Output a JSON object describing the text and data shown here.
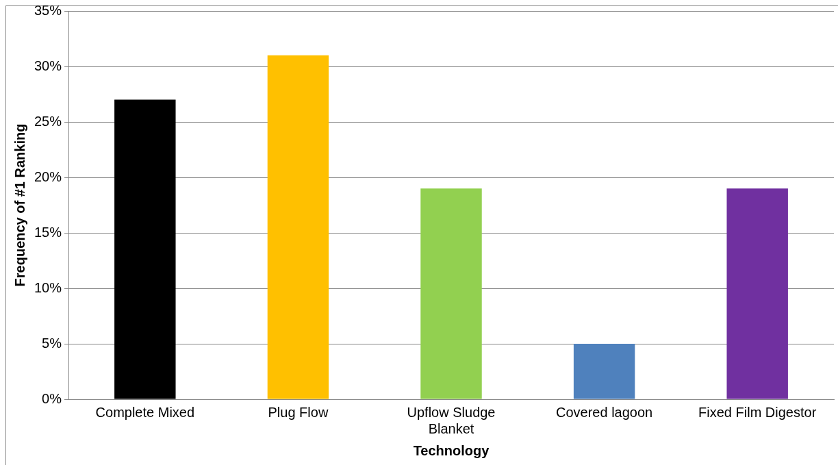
{
  "chart_data": {
    "type": "bar",
    "categories": [
      "Complete Mixed",
      "Plug Flow",
      "Upflow Sludge Blanket",
      "Covered lagoon",
      "Fixed Film Digestor"
    ],
    "values": [
      27,
      31,
      19,
      5,
      19
    ],
    "colors": [
      "#000000",
      "#ffc000",
      "#92d050",
      "#4f81bd",
      "#7030a0"
    ],
    "xlabel": "Technology",
    "ylabel": "Frequency of #1 Ranking",
    "ylim": [
      0,
      35
    ],
    "yticks": [
      {
        "value": 0,
        "label": "0%"
      },
      {
        "value": 5,
        "label": "5%"
      },
      {
        "value": 10,
        "label": "10%"
      },
      {
        "value": 15,
        "label": "15%"
      },
      {
        "value": 20,
        "label": "20%"
      },
      {
        "value": 25,
        "label": "25%"
      },
      {
        "value": 30,
        "label": "30%"
      },
      {
        "value": 35,
        "label": "35%"
      }
    ],
    "grid": "y",
    "legend": false
  }
}
